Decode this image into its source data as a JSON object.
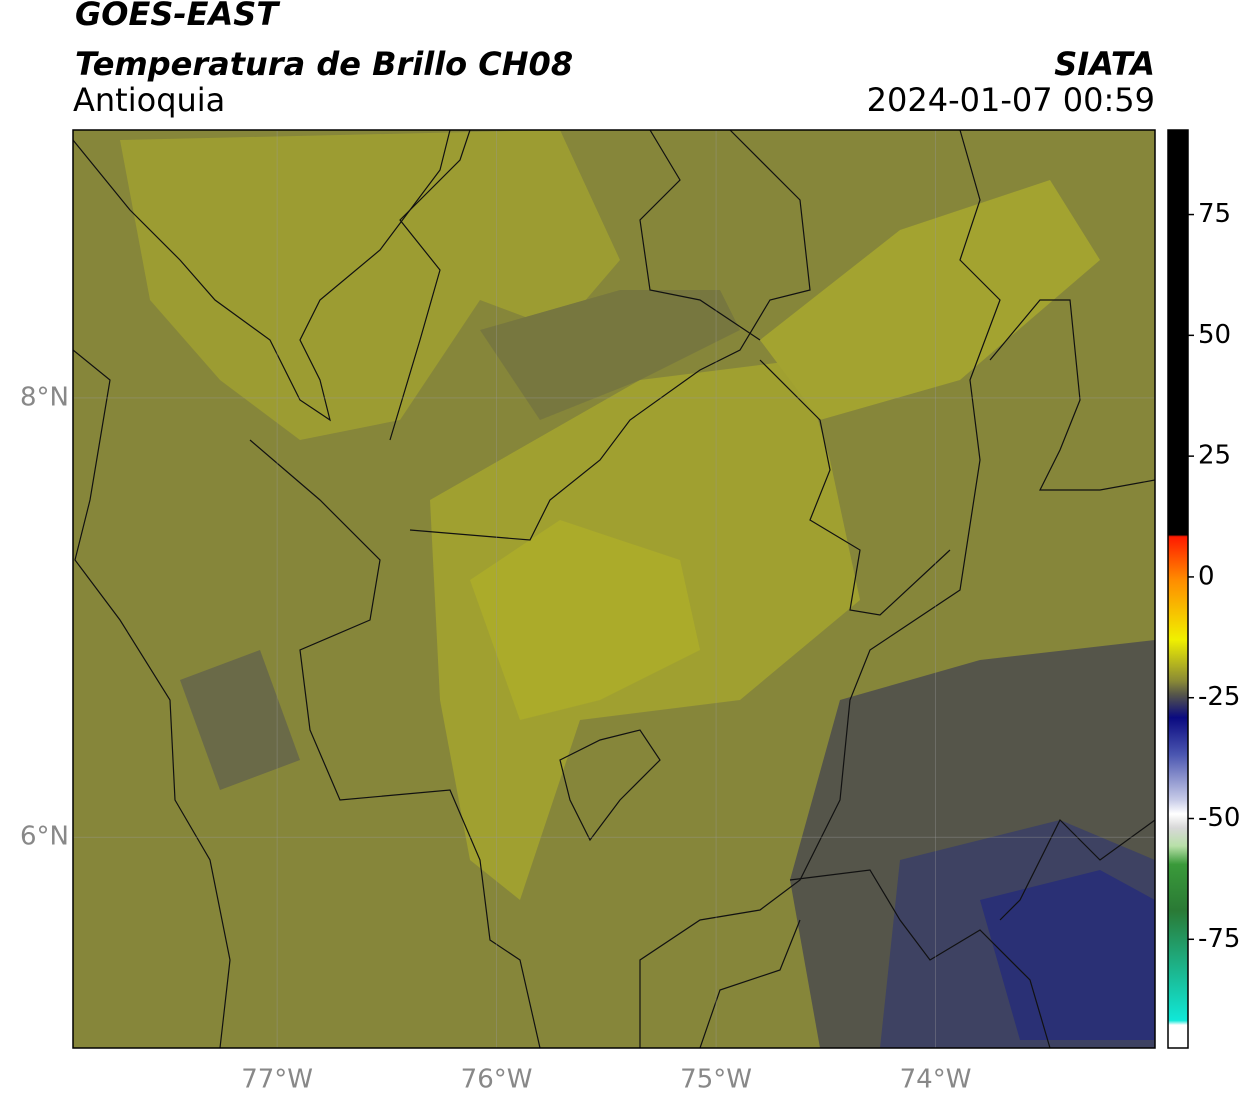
{
  "header": {
    "title": "GOES-EAST",
    "subtitle": "Temperatura de Brillo CH08",
    "region": "Antioquia",
    "source": "SIATA",
    "datetime": "2024-01-07 00:59"
  },
  "map": {
    "xlim": [
      -77.93,
      -73.0
    ],
    "ylim": [
      5.04,
      9.22
    ],
    "xticks": [
      {
        "value": -77,
        "label": "77°W"
      },
      {
        "value": -76,
        "label": "76°W"
      },
      {
        "value": -75,
        "label": "75°W"
      },
      {
        "value": -74,
        "label": "74°W"
      }
    ],
    "yticks": [
      {
        "value": 8,
        "label": "8°N"
      },
      {
        "value": 6,
        "label": "6°N"
      }
    ]
  },
  "colorbar": {
    "lim": [
      -97.5,
      92.5
    ],
    "ticks": [
      75,
      50,
      25,
      0,
      -25,
      -50,
      -75
    ]
  }
}
